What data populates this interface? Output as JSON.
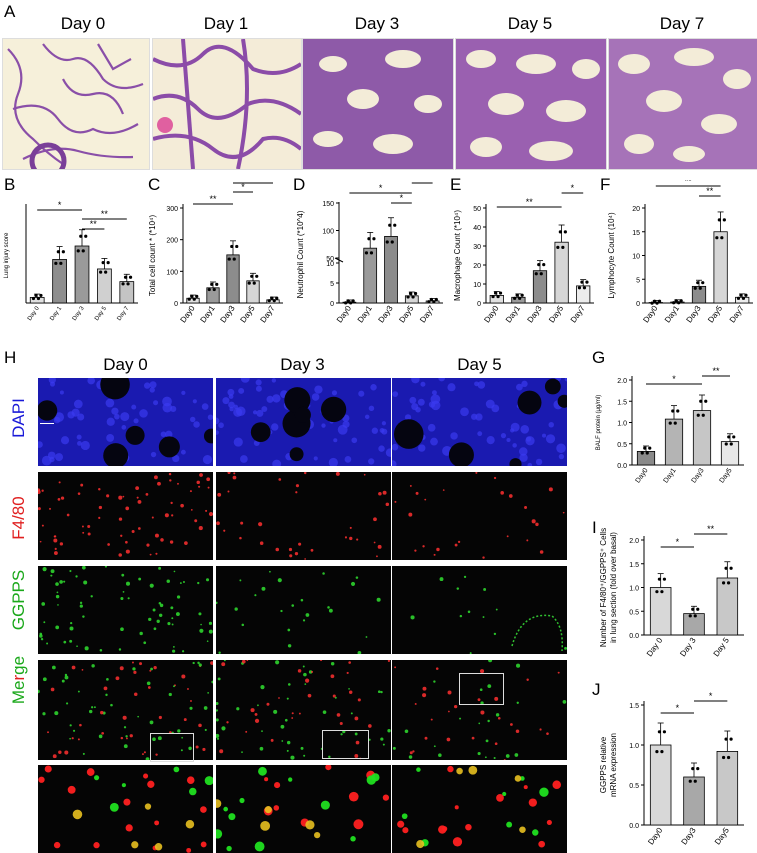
{
  "panels": {
    "A": "A",
    "B": "B",
    "C": "C",
    "D": "D",
    "E": "E",
    "F": "F",
    "G": "G",
    "H": "H",
    "I": "I",
    "J": "J"
  },
  "he_days": [
    "Day 0",
    "Day 1",
    "Day 3",
    "Day 5",
    "Day 7"
  ],
  "if_days": [
    "Day 0",
    "Day 3",
    "Day 5"
  ],
  "if_channels": [
    {
      "label": "DAPI",
      "color": "#1a1ad8"
    },
    {
      "label": "F4/80",
      "color": "#e02020"
    },
    {
      "label": "GGPPS",
      "color": "#1aa81a"
    },
    {
      "label": "Merge",
      "color_a": "#e02020",
      "color_b": "#1aa81a"
    }
  ],
  "chart_data": [
    {
      "panel": "B",
      "type": "bar",
      "categories": [
        "Day 0",
        "Day 1",
        "Day 3",
        "Day 5",
        "Day 7"
      ],
      "values": [
        0.07,
        0.55,
        0.72,
        0.43,
        0.27
      ],
      "ylabel": "Lung injury score",
      "ylim": [
        0,
        1.2
      ],
      "significance": [
        {
          "a": 0,
          "b": 2,
          "text": "*"
        },
        {
          "a": 2,
          "b": 3,
          "text": "**"
        },
        {
          "a": 2,
          "b": 4,
          "text": "**"
        }
      ]
    },
    {
      "panel": "C",
      "type": "bar",
      "categories": [
        "Day0",
        "Day1",
        "Day3",
        "Day5",
        "Day7"
      ],
      "values": [
        15,
        48,
        152,
        70,
        10
      ],
      "ylabel": "Total cell count * (*10⁴)",
      "ylim": [
        0,
        300
      ],
      "yticks": [
        0,
        100,
        200,
        300
      ],
      "significance": [
        {
          "a": 0,
          "b": 2,
          "text": "**"
        },
        {
          "a": 2,
          "b": 3,
          "text": "*"
        },
        {
          "a": 2,
          "b": 4,
          "text": "**"
        }
      ]
    },
    {
      "panel": "D",
      "type": "bar",
      "categories": [
        "Day0",
        "Day1",
        "Day3",
        "Day5",
        "Day7"
      ],
      "values": [
        0.2,
        35,
        65,
        1.8,
        0.5
      ],
      "ylabel": "Neutrophil Count (*10^4)",
      "yticks": [
        "0",
        "5",
        "10",
        "50",
        "100",
        "150"
      ],
      "broken_axis": true,
      "significance": [
        {
          "a": 0,
          "b": 3,
          "text": "*"
        },
        {
          "a": 2,
          "b": 3,
          "text": "*"
        },
        {
          "a": 3,
          "b": 4,
          "text": "*"
        }
      ]
    },
    {
      "panel": "E",
      "type": "bar",
      "categories": [
        "Day0",
        "Day1",
        "Day3",
        "Day5",
        "Day7"
      ],
      "values": [
        4,
        3,
        17,
        32,
        9
      ],
      "ylabel": "Macrophage Count (*10⁴)",
      "ylim": [
        0,
        50
      ],
      "yticks": [
        0,
        10,
        20,
        30,
        40,
        50
      ],
      "significance": [
        {
          "a": 0,
          "b": 3,
          "text": "**"
        },
        {
          "a": 3,
          "b": 4,
          "text": "*"
        }
      ]
    },
    {
      "panel": "F",
      "type": "bar",
      "categories": [
        "Day0",
        "Day1",
        "Day3",
        "Day5",
        "Day7"
      ],
      "values": [
        0.1,
        0.2,
        3.5,
        15,
        1.2
      ],
      "ylabel": "Lymphocyte Count (10⁴)",
      "ylim": [
        0,
        20
      ],
      "yticks": [
        0,
        5,
        10,
        15,
        20
      ],
      "significance": [
        {
          "a": 0,
          "b": 3,
          "text": "**"
        },
        {
          "a": 2,
          "b": 3,
          "text": "**"
        },
        {
          "a": 3,
          "b": 4,
          "text": "**"
        }
      ]
    },
    {
      "panel": "G",
      "type": "bar",
      "categories": [
        "Day0",
        "Day1",
        "Day3",
        "Day5"
      ],
      "values": [
        0.32,
        1.08,
        1.28,
        0.55
      ],
      "ylabel": "BALF protein (μg/ml)",
      "ylim": [
        0,
        2.0
      ],
      "yticks": [
        "0.0",
        "0.5",
        "1.0",
        "1.5",
        "2.0"
      ],
      "significance": [
        {
          "a": 0,
          "b": 2,
          "text": "*"
        },
        {
          "a": 2,
          "b": 3,
          "text": "**"
        }
      ]
    },
    {
      "panel": "I",
      "type": "bar",
      "categories": [
        "Day 0",
        "Day 3",
        "Day 5"
      ],
      "values": [
        1.0,
        0.45,
        1.2
      ],
      "ylabel": "Number of F4/80⁺/GGPPS⁺ Cells in lung section (fold over basal)",
      "ylim": [
        0,
        2.0
      ],
      "yticks": [
        "0.0",
        "0.5",
        "1.0",
        "1.5",
        "2.0"
      ],
      "significance": [
        {
          "a": 0,
          "b": 1,
          "text": "*"
        },
        {
          "a": 1,
          "b": 2,
          "text": "**"
        }
      ]
    },
    {
      "panel": "J",
      "type": "bar",
      "categories": [
        "Day0",
        "Day3",
        "Day5"
      ],
      "values": [
        1.0,
        0.6,
        0.92
      ],
      "ylabel": "GGPPS relative mRNA expression",
      "ylim": [
        0,
        1.5
      ],
      "yticks": [
        "0.0",
        "0.5",
        "1.0",
        "1.5"
      ],
      "significance": [
        {
          "a": 0,
          "b": 1,
          "text": "*"
        },
        {
          "a": 1,
          "b": 2,
          "text": "*"
        }
      ]
    }
  ]
}
